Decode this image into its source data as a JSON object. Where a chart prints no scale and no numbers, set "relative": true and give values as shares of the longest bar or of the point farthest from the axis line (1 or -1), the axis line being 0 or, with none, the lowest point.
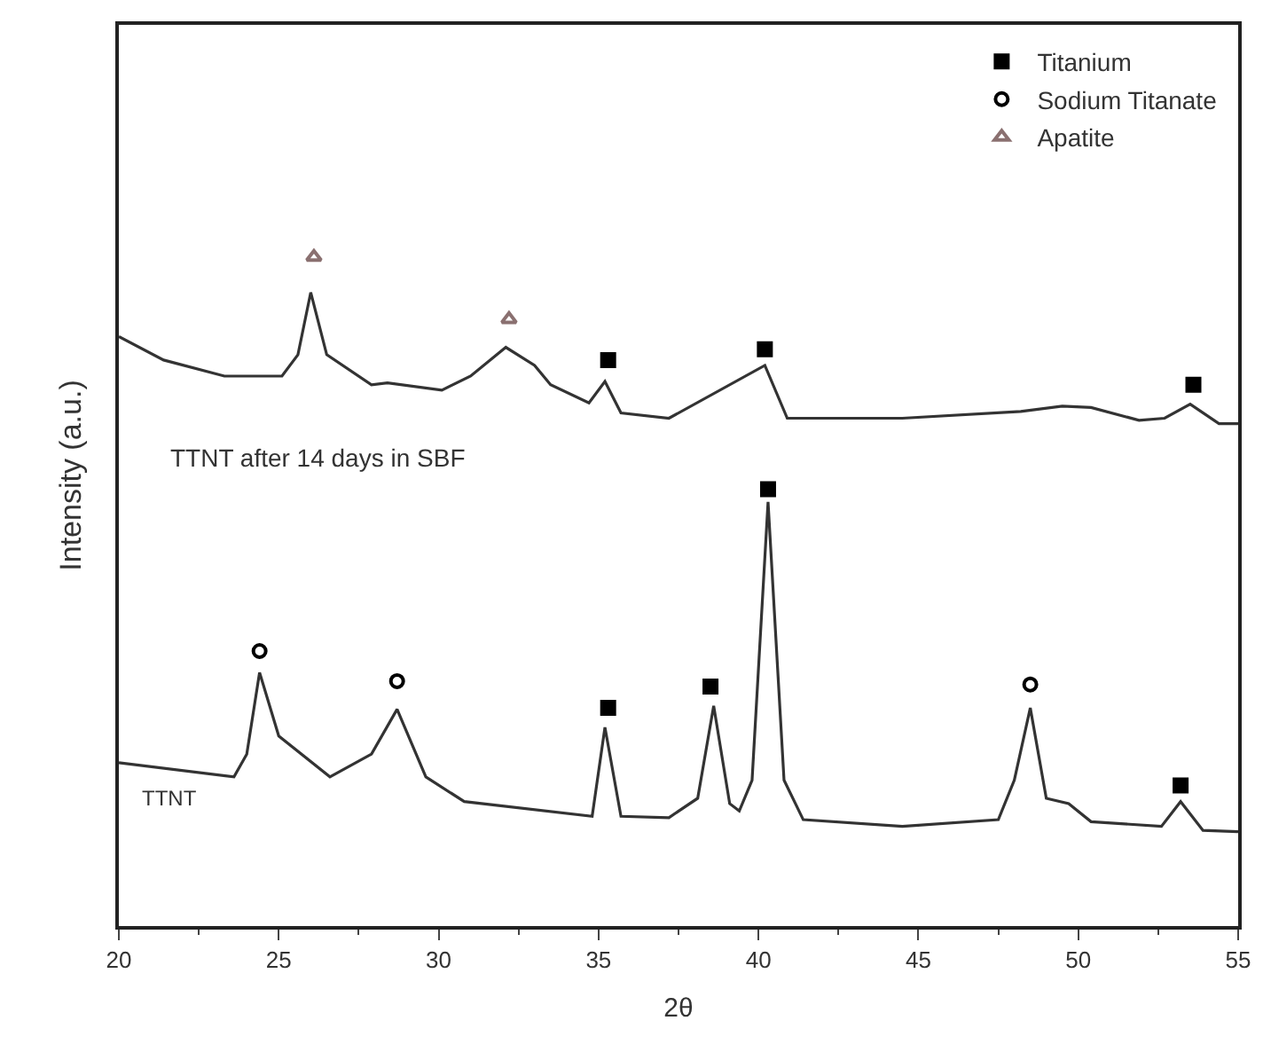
{
  "chart_data": {
    "type": "line",
    "relative": true,
    "xlabel": "2θ",
    "ylabel": "Intensity (a.u.)",
    "xlim": [
      20,
      55
    ],
    "xticks": [
      20,
      25,
      30,
      35,
      40,
      45,
      50,
      55
    ],
    "legend": "top right",
    "series": [
      {
        "name": "TTNT after 14 days in SBF",
        "color": "#333333",
        "x": [
          20,
          21.4,
          23.3,
          25.1,
          25.6,
          26.0,
          26.5,
          27.9,
          28.4,
          30.1,
          31.0,
          32.1,
          33.0,
          33.5,
          34.7,
          35.2,
          35.7,
          37.2,
          40.2,
          40.9,
          44.5,
          48.2,
          49.5,
          50.4,
          51.9,
          52.7,
          53.5,
          54.4,
          55
        ],
        "values": [
          0.881,
          0.846,
          0.822,
          0.822,
          0.854,
          0.947,
          0.854,
          0.809,
          0.812,
          0.801,
          0.822,
          0.865,
          0.838,
          0.809,
          0.782,
          0.814,
          0.767,
          0.759,
          0.838,
          0.759,
          0.759,
          0.769,
          0.777,
          0.775,
          0.756,
          0.759,
          0.78,
          0.751,
          0.751
        ]
      },
      {
        "name": "TTNT",
        "color": "#333333",
        "x": [
          20,
          23.6,
          24.0,
          24.4,
          25.0,
          26.6,
          27.9,
          28.7,
          29.6,
          30.8,
          34.8,
          35.2,
          35.7,
          37.2,
          38.1,
          38.6,
          39.1,
          39.4,
          39.8,
          40.3,
          40.8,
          41.4,
          44.5,
          47.5,
          48.0,
          48.5,
          49.0,
          49.7,
          50.4,
          52.6,
          53.2,
          53.9,
          55
        ],
        "values": [
          0.244,
          0.223,
          0.257,
          0.379,
          0.284,
          0.223,
          0.257,
          0.324,
          0.223,
          0.186,
          0.164,
          0.297,
          0.164,
          0.162,
          0.191,
          0.329,
          0.183,
          0.172,
          0.218,
          0.634,
          0.218,
          0.159,
          0.149,
          0.159,
          0.218,
          0.326,
          0.191,
          0.183,
          0.156,
          0.149,
          0.186,
          0.143,
          0.141
        ]
      },
      {
        "name": "Titanium",
        "type": "scatter",
        "marker": "square",
        "color": "#000000",
        "x": [
          35.3,
          40.2,
          53.6,
          35.3,
          38.5,
          40.3,
          53.2
        ],
        "values": [
          0.846,
          0.862,
          0.809,
          0.326,
          0.358,
          0.653,
          0.21
        ]
      },
      {
        "name": "Sodium Titanate",
        "type": "scatter",
        "marker": "circle",
        "color": "#000000",
        "x": [
          24.4,
          28.7,
          48.5
        ],
        "values": [
          0.411,
          0.366,
          0.361
        ]
      },
      {
        "name": "Apatite",
        "type": "scatter",
        "marker": "triangle",
        "color": "#8a7070",
        "x": [
          26.1,
          32.2
        ],
        "values": [
          1.0,
          0.907
        ]
      }
    ]
  }
}
